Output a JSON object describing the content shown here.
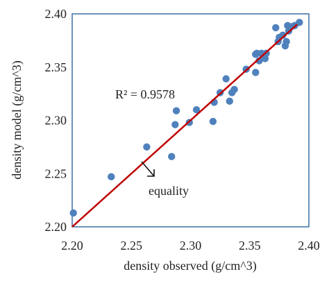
{
  "chart_data": {
    "type": "scatter",
    "title": "",
    "xlabel": "density observed (g/cm^3)",
    "ylabel": "density model (g/cm^3)",
    "xlim": [
      2.2,
      2.4
    ],
    "ylim": [
      2.2,
      2.4
    ],
    "x_ticks": [
      "2.20",
      "2.25",
      "2.30",
      "2.35",
      "2.40"
    ],
    "y_ticks": [
      "2.20",
      "2.25",
      "2.30",
      "2.35",
      "2.40"
    ],
    "grid": false,
    "legend": "none",
    "annotations": {
      "r_squared": "R² = 0.9578",
      "equality_label": "equality"
    },
    "colors": {
      "points": "#4f81bd",
      "equality_line": "#c00000",
      "frame": "#3b6ea5"
    },
    "series": [
      {
        "points": [
          [
            2.201,
            2.213
          ],
          [
            2.233,
            2.247
          ],
          [
            2.263,
            2.275
          ],
          [
            2.284,
            2.266
          ],
          [
            2.287,
            2.296
          ],
          [
            2.288,
            2.309
          ],
          [
            2.299,
            2.298
          ],
          [
            2.305,
            2.31
          ],
          [
            2.319,
            2.299
          ],
          [
            2.32,
            2.317
          ],
          [
            2.325,
            2.326
          ],
          [
            2.33,
            2.339
          ],
          [
            2.333,
            2.318
          ],
          [
            2.335,
            2.326
          ],
          [
            2.337,
            2.329
          ],
          [
            2.347,
            2.348
          ],
          [
            2.355,
            2.345
          ],
          [
            2.355,
            2.362
          ],
          [
            2.356,
            2.363
          ],
          [
            2.358,
            2.356
          ],
          [
            2.36,
            2.363
          ],
          [
            2.361,
            2.361
          ],
          [
            2.363,
            2.358
          ],
          [
            2.364,
            2.363
          ],
          [
            2.372,
            2.387
          ],
          [
            2.374,
            2.374
          ],
          [
            2.375,
            2.378
          ],
          [
            2.378,
            2.38
          ],
          [
            2.38,
            2.37
          ],
          [
            2.381,
            2.374
          ],
          [
            2.382,
            2.389
          ],
          [
            2.383,
            2.384
          ],
          [
            2.385,
            2.388
          ],
          [
            2.388,
            2.389
          ],
          [
            2.392,
            2.392
          ]
        ]
      }
    ],
    "reference_line": {
      "name": "equality",
      "x": [
        2.2,
        2.39
      ],
      "y": [
        2.2,
        2.39
      ]
    }
  }
}
